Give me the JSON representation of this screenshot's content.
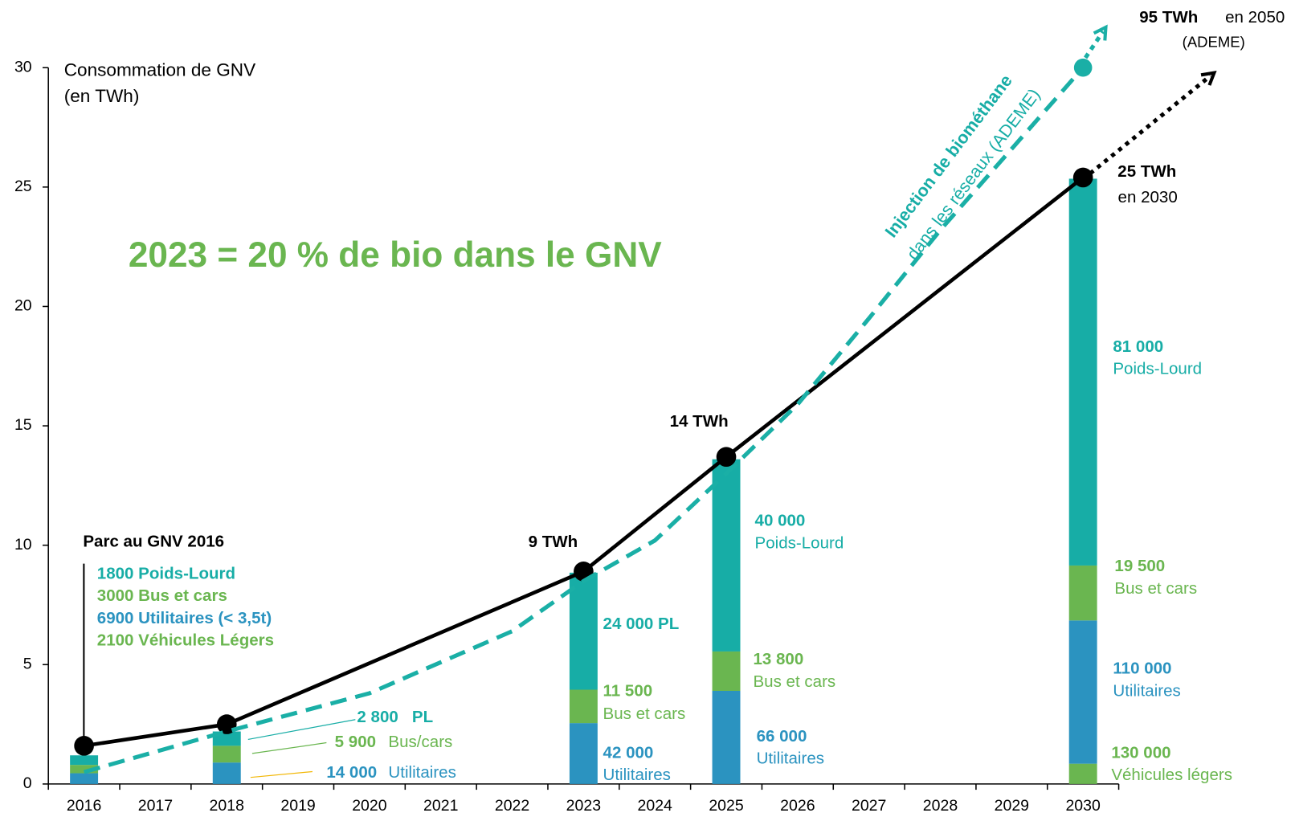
{
  "chart_data": {
    "type": "bar",
    "stacked": true,
    "title": "2023 = 20 % de bio dans le GNV",
    "ylabel": [
      "Consommation de GNV",
      "(en TWh)"
    ],
    "categories": [
      "2016",
      "2017",
      "2018",
      "2019",
      "2020",
      "2021",
      "2022",
      "2023",
      "2024",
      "2025",
      "2026",
      "2027",
      "2028",
      "2029",
      "2030"
    ],
    "ylim": [
      0,
      30
    ],
    "yticks": [
      0,
      5,
      10,
      15,
      20,
      25,
      30
    ],
    "xlim": [
      2015.5,
      2030.5
    ],
    "grid": false,
    "series": [
      {
        "color": "#6ab650",
        "values": [
          null,
          null,
          null,
          null,
          null,
          null,
          null,
          null,
          null,
          null,
          null,
          null,
          null,
          null,
          0.85
        ]
      },
      {
        "color": "#2b93c0",
        "values": [
          0.45,
          null,
          0.9,
          null,
          null,
          null,
          null,
          2.55,
          null,
          3.9,
          null,
          null,
          null,
          null,
          6.0
        ]
      },
      {
        "color": "#6ab650",
        "values": [
          0.35,
          null,
          0.7,
          null,
          null,
          null,
          null,
          1.4,
          null,
          1.65,
          null,
          null,
          null,
          null,
          2.3
        ]
      },
      {
        "color": "#17ada6",
        "values": [
          0.4,
          null,
          0.6,
          null,
          null,
          null,
          null,
          4.9,
          null,
          8.05,
          null,
          null,
          null,
          null,
          16.2
        ]
      }
    ],
    "lines": [
      {
        "type": "line",
        "color": "#000000",
        "x": [
          2016,
          2018,
          2023,
          2025,
          2030
        ],
        "values": [
          1.6,
          2.5,
          8.9,
          13.7,
          25.4
        ],
        "value_labels": [
          null,
          null,
          "9 TWh",
          "14 TWh",
          "25 TWh"
        ]
      },
      {
        "type": "line",
        "color": "#1aafa6",
        "dashed": true,
        "x": [
          2016,
          2018,
          2020,
          2022,
          2023,
          2024,
          2025,
          2026,
          2027,
          2028,
          2029,
          2030
        ],
        "values": [
          0.5,
          2.2,
          3.8,
          6.4,
          8.5,
          10.2,
          13.0,
          15.9,
          19.5,
          23.2,
          26.6,
          30.0
        ]
      }
    ],
    "annotations": [
      "Parc au GNV 2016",
      "1800 Poids-Lourd",
      "3000 Bus et cars",
      "6900 Utilitaires (< 3,5t)",
      "2100 Véhicules Légers",
      "2 800   PL",
      "5 900",
      "Bus/cars",
      "14 000",
      "Utilitaires",
      "24 000 PL",
      "11 500",
      "Bus et cars",
      "42 000",
      "Utilitaires",
      "40 000",
      "Poids-Lourd",
      "13 800",
      "Bus et cars",
      "66 000",
      "Utilitaires",
      "81 000",
      "Poids-Lourd",
      "19 500",
      "Bus et cars",
      "110 000",
      "Utilitaires",
      "130 000",
      "Véhicules légers",
      "en 2030",
      "95 TWh",
      "en 2050",
      "(ADEME)",
      "Injection de biométhane",
      "dans les réseaux (ADEME)"
    ]
  }
}
